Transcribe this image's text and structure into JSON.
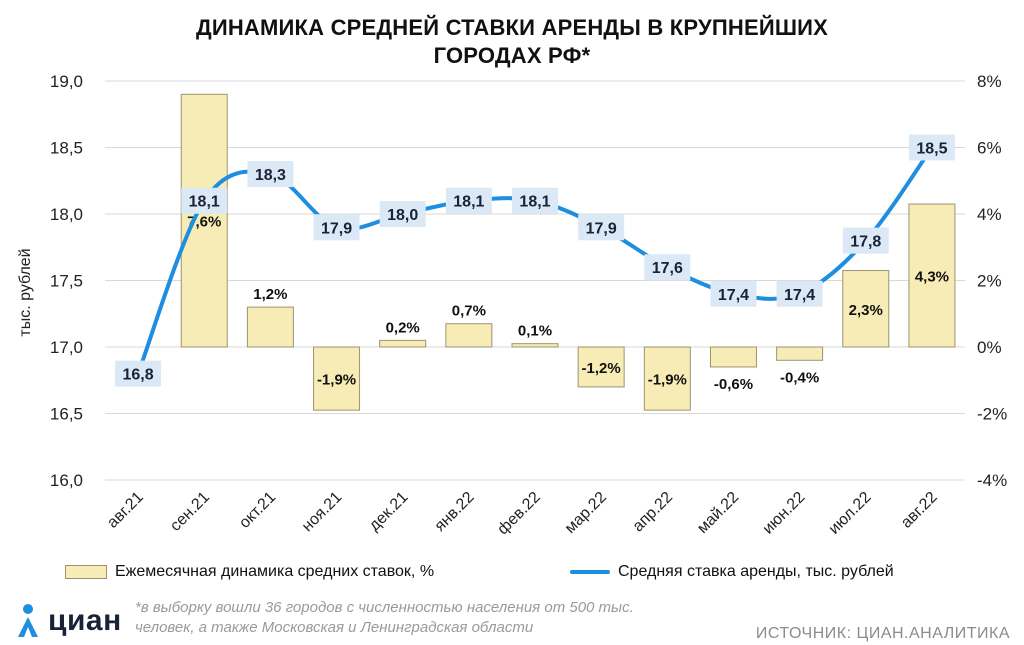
{
  "title_line1": "ДИНАМИКА СРЕДНЕЙ СТАВКИ АРЕНДЫ В КРУПНЕЙШИХ",
  "title_line2": "ГОРОДАХ РФ*",
  "legend": {
    "bars": "Ежемесячная динамика средних ставок, %",
    "line": "Средняя ставка аренды, тыс. рублей"
  },
  "footnote_line1": "*в выборку вошли 36 городов с численностью населения от 500 тыс.",
  "footnote_line2": "человек, а также Московская и Ленинградская области",
  "source": "ИСТОЧНИК: ЦИАН.АНАЛИТИКА",
  "logo_text": "циан",
  "colors": {
    "bar_fill": "#f7ecb5",
    "bar_stroke": "#9a9570",
    "line": "#1e8ee0",
    "label_box": "#dbe8f5",
    "grid": "#d9d9d9"
  },
  "chart_data": {
    "type": "bar+line",
    "categories": [
      "авг.21",
      "сен.21",
      "окт.21",
      "ноя.21",
      "дек.21",
      "янв.22",
      "фев.22",
      "мар.22",
      "апр.22",
      "май.22",
      "июн.22",
      "июл.22",
      "авг.22"
    ],
    "series": [
      {
        "name": "Ежемесячная динамика средних ставок, %",
        "type": "bar",
        "axis": "right",
        "values": [
          null,
          7.6,
          1.2,
          -1.9,
          0.2,
          0.7,
          0.1,
          -1.2,
          -1.9,
          -0.6,
          -0.4,
          2.3,
          4.3
        ],
        "labels": [
          "",
          "7,6%",
          "1,2%",
          "-1,9%",
          "0,2%",
          "0,7%",
          "0,1%",
          "-1,2%",
          "-1,9%",
          "-0,6%",
          "-0,4%",
          "2,3%",
          "4,3%"
        ]
      },
      {
        "name": "Средняя ставка аренды, тыс. рублей",
        "type": "line",
        "axis": "left",
        "values": [
          16.8,
          18.1,
          18.3,
          17.9,
          18.0,
          18.1,
          18.1,
          17.9,
          17.6,
          17.4,
          17.4,
          17.8,
          18.5
        ],
        "labels": [
          "16,8",
          "18,1",
          "18,3",
          "17,9",
          "18,0",
          "18,1",
          "18,1",
          "17,9",
          "17,6",
          "17,4",
          "17,4",
          "17,8",
          "18,5"
        ]
      }
    ],
    "ylabel": "тыс. рублей",
    "ylim": [
      16.0,
      19.0
    ],
    "y_ticks": [
      "16,0",
      "16,5",
      "17,0",
      "17,5",
      "18,0",
      "18,5",
      "19,0"
    ],
    "y2lim": [
      -4,
      8
    ],
    "y2_ticks": [
      "-4%",
      "-2%",
      "0%",
      "2%",
      "4%",
      "6%",
      "8%"
    ],
    "grid": true,
    "legend_position": "bottom"
  }
}
